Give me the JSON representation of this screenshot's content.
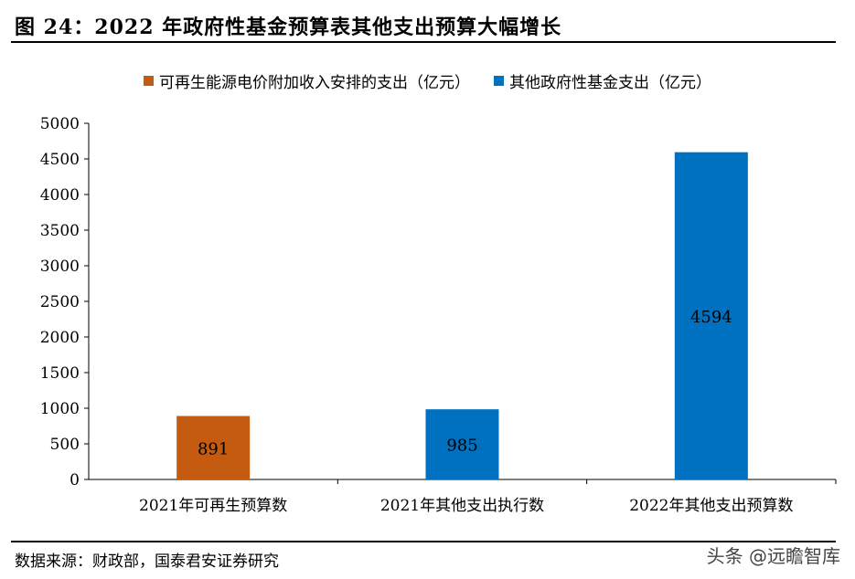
{
  "header": {
    "title": "图 24：2022 年政府性基金预算表其他支出预算大幅增长"
  },
  "legend": [
    {
      "label": "可再生能源电价附加收入安排的支出（亿元）",
      "color": "#C55A11"
    },
    {
      "label": "其他政府性基金支出（亿元）",
      "color": "#0070C0"
    }
  ],
  "chart_data": {
    "type": "bar",
    "categories": [
      "2021年可再生预算数",
      "2021年其他支出执行数",
      "2022年其他支出预算数"
    ],
    "series": [
      {
        "name": "可再生能源电价附加收入安排的支出（亿元）",
        "values": [
          891,
          null,
          null
        ]
      },
      {
        "name": "其他政府性基金支出（亿元）",
        "values": [
          null,
          985,
          4594
        ]
      }
    ],
    "data_labels": [
      "891",
      "985",
      "4594"
    ],
    "y_ticks": [
      "0",
      "500",
      "1000",
      "1500",
      "2000",
      "2500",
      "3000",
      "3500",
      "4000",
      "4500",
      "5000"
    ],
    "ylim": [
      0,
      5000
    ],
    "grid": false,
    "legend_position": "top"
  },
  "footer": {
    "source": "数据来源：财政部，国泰君安证券研究",
    "watermark": "头条 @远瞻智库"
  }
}
